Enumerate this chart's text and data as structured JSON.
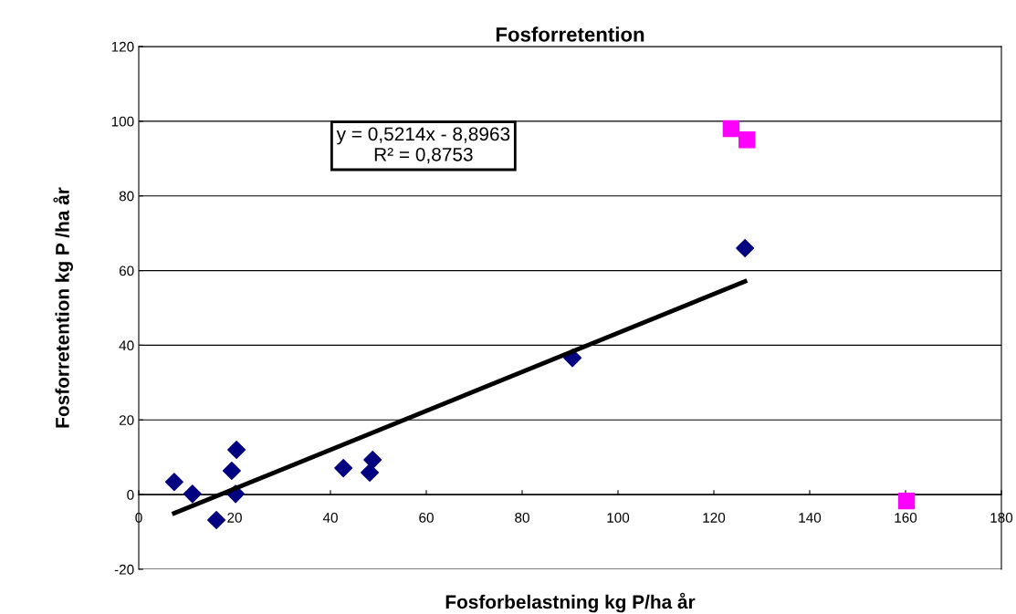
{
  "chart_data": {
    "type": "scatter",
    "title": "Fosforretention",
    "xlabel": "Fosforbelastning kg P/ha år",
    "ylabel": "Fosforretention kg P /ha år",
    "xlim": [
      0,
      180
    ],
    "xticks": [
      0,
      20,
      40,
      60,
      80,
      100,
      120,
      140,
      160,
      180
    ],
    "ylim": [
      -20,
      120
    ],
    "yticks": [
      -20,
      0,
      20,
      40,
      60,
      80,
      100,
      120
    ],
    "grid": "y",
    "legend": false,
    "annotations": [
      "y = 0,5214x - 8,8963\nR² = 0,8753"
    ],
    "series": [
      {
        "color": "#000080",
        "marker": "diamond",
        "x": [
          7.4,
          11.2,
          16.2,
          19.4,
          20.4,
          20.2,
          42.7,
          48.2,
          48.8,
          90.5,
          126.5
        ],
        "values": [
          3.4,
          0.2,
          -6.8,
          6.4,
          12,
          0.2,
          7.1,
          5.9,
          9.3,
          36.6,
          66
        ]
      },
      {
        "color": "#ff00ff",
        "marker": "square",
        "x": [
          123.6,
          126.9,
          160.2
        ],
        "values": [
          98,
          95,
          -1.7
        ]
      },
      {
        "type": "line",
        "color": "#000000",
        "marker": "none",
        "x": [
          7.4,
          126.5
        ],
        "values": [
          -5.0,
          57.1
        ]
      }
    ]
  }
}
